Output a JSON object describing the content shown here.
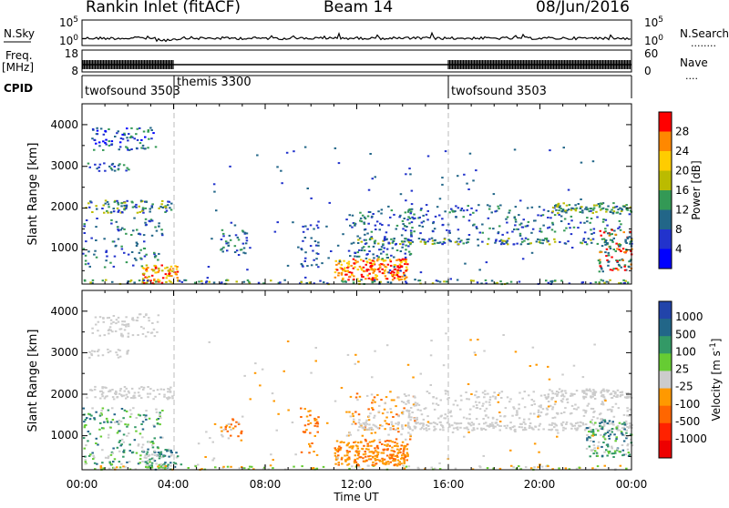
{
  "header": {
    "title": "Rankin Inlet (fitACF)",
    "beam": "Beam 14",
    "date": "08/Jun/2016"
  },
  "labels": {
    "nsky": "N.Sky",
    "nsearch": "N.Search",
    "nsearch_dots": "........",
    "freq": "Freq.",
    "freq_unit": "[MHz]",
    "nave": "Nave",
    "nave_dots": "....",
    "cpid": "CPID"
  },
  "noise_panel": {
    "left_ticks": [
      "10^5",
      "10^0"
    ],
    "right_ticks": [
      "10^5",
      "10^0"
    ]
  },
  "freq_panel": {
    "left_ticks": [
      "18",
      "8"
    ],
    "right_ticks": [
      "60",
      "0"
    ]
  },
  "cpid": {
    "segments": [
      {
        "label": "twofsound 3503",
        "start_h": 0,
        "end_h": 4
      },
      {
        "label": "themis 3300",
        "start_h": 4,
        "end_h": 16
      },
      {
        "label": "twofsound 3503",
        "start_h": 16,
        "end_h": 24
      }
    ]
  },
  "chart_data": [
    {
      "type": "heatmap",
      "title": "",
      "xlabel": "",
      "ylabel": "Slant Range [km]",
      "xlim": [
        0,
        24
      ],
      "ylim": [
        180,
        4500
      ],
      "yticks": [
        "1000",
        "2000",
        "3000",
        "4000"
      ],
      "colorbar": {
        "label": "Power [dB]",
        "ticks": [
          "28",
          "24",
          "20",
          "16",
          "12",
          "8",
          "4"
        ],
        "colors": [
          "#ff0000",
          "#ff8800",
          "#ffcc00",
          "#bbbb00",
          "#339955",
          "#226688",
          "#2233cc",
          "#0000ff"
        ]
      }
    },
    {
      "type": "heatmap",
      "title": "",
      "xlabel": "Time UT",
      "ylabel": "Slant Range [km]",
      "xlim": [
        0,
        24
      ],
      "ylim": [
        180,
        4500
      ],
      "xticks": [
        "00:00",
        "04:00",
        "08:00",
        "12:00",
        "16:00",
        "20:00",
        "00:00"
      ],
      "yticks": [
        "1000",
        "2000",
        "3000",
        "4000"
      ],
      "colorbar": {
        "label": "Velocity [m s^-1]",
        "ticks": [
          "1000",
          "500",
          "100",
          "25",
          "-25",
          "-100",
          "-500",
          "-1000"
        ],
        "colors": [
          "#2244aa",
          "#226688",
          "#339966",
          "#66cc33",
          "#cccccc",
          "#ff9900",
          "#ff6600",
          "#ff2200",
          "#ee0000"
        ]
      }
    }
  ]
}
